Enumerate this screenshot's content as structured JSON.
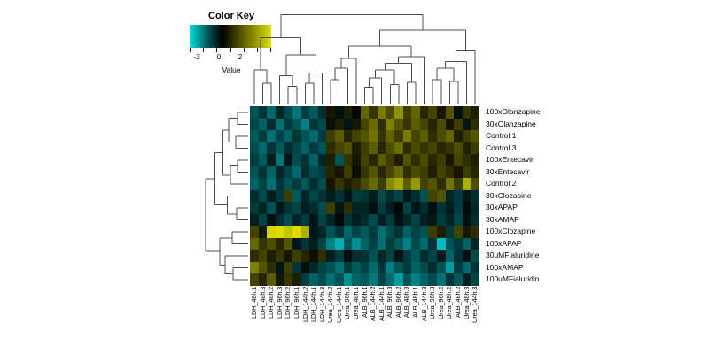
{
  "color_key": {
    "title": "Color Key",
    "value_label": "Value",
    "tick_labels": [
      "-3",
      "0",
      "2"
    ],
    "tick_label_positions": [
      0.09,
      0.36,
      0.62
    ],
    "n_ticks": 7,
    "gradient_left": "#00dede",
    "gradient_mid": "#000000",
    "gradient_right": "#dede00"
  },
  "chart_data": {
    "type": "heatmap",
    "title": "",
    "value_label": "Value",
    "scale": {
      "min": -3,
      "max": 3,
      "negative_color": "#00e6eb",
      "zero_color": "#000000",
      "positive_color": "#e6e600"
    },
    "columns": [
      "LDH_48h.1",
      "LDH_48h.3",
      "LDH_48h.2",
      "LDH_96h.3",
      "LDH_96h.2",
      "LDH_96h.1",
      "LDH_144h.2",
      "LDH_144h.1",
      "LDH_144h.3",
      "Urea_144h.2",
      "Urea_144h.1",
      "Urea_96h.1",
      "Urea_48h.1",
      "ALB_96h.1",
      "ALB_144h.2",
      "ALB_144h.1",
      "ALB_96h.3",
      "ALB_96h.2",
      "ALB_48h.3",
      "ALB_48h.1",
      "ALB_144h.3",
      "Urea_96h.3",
      "Urea_96h.2",
      "Urea_48h.2",
      "ALB_48h.2",
      "Urea_48h.3",
      "Urea_144h.3"
    ],
    "rows": [
      "100xOlanzapine",
      "30xOlanzapine",
      "Control 1",
      "Control 3",
      "100xEntecavir",
      "30xEntecavir",
      "Control 2",
      "30xClozapine",
      "30xAPAP",
      "30xAMAP",
      "100xClozapine",
      "100xAPAP",
      "30uMFialuridine",
      "100xAMAP",
      "100uMFialuridin"
    ],
    "values": [
      [
        -1.1,
        -0.7,
        -1.4,
        -0.5,
        -1.0,
        -1.6,
        -0.8,
        -1.2,
        -0.6,
        0.3,
        -0.2,
        0.4,
        0.1,
        1.3,
        0.7,
        1.6,
        1.0,
        1.9,
        0.8,
        1.3,
        0.5,
        0.9,
        0.3,
        1.1,
        -0.2,
        0.7,
        0.4
      ],
      [
        -0.9,
        -1.3,
        -0.6,
        -1.5,
        -0.8,
        -1.1,
        -1.7,
        -0.7,
        -1.0,
        0.2,
        0.4,
        -0.3,
        0.3,
        0.9,
        1.4,
        0.6,
        1.7,
        1.1,
        0.7,
        1.2,
        0.9,
        0.5,
        1.0,
        0.3,
        0.8,
        -0.3,
        0.6
      ],
      [
        -1.2,
        -0.8,
        -1.5,
        -0.9,
        -1.3,
        -0.7,
        -1.1,
        -1.4,
        -0.8,
        0.8,
        1.2,
        0.5,
        0.9,
        1.1,
        1.5,
        0.7,
        1.3,
        0.8,
        1.6,
        0.9,
        1.2,
        0.6,
        1.0,
        1.3,
        0.4,
        0.8,
        1.1
      ],
      [
        -1.0,
        -1.4,
        -0.7,
        -1.2,
        -0.6,
        -0.9,
        -1.3,
        -0.8,
        -1.1,
        0.6,
        0.9,
        1.1,
        0.4,
        0.8,
        1.2,
        0.5,
        1.0,
        1.4,
        0.6,
        1.0,
        0.7,
        0.9,
        0.5,
        0.7,
        1.0,
        0.4,
        0.8
      ],
      [
        -0.8,
        -1.2,
        -0.4,
        -1.6,
        -0.3,
        -1.0,
        -0.7,
        -1.3,
        -0.5,
        0.4,
        -1.1,
        0.7,
        0.3,
        0.9,
        0.5,
        1.2,
        0.8,
        0.4,
        1.1,
        0.6,
        1.0,
        0.5,
        0.8,
        0.3,
        0.9,
        0.6,
        0.4
      ],
      [
        -1.1,
        -0.7,
        -1.3,
        -0.5,
        -0.9,
        -1.4,
        -0.6,
        -1.0,
        -0.8,
        0.5,
        0.3,
        0.8,
        0.2,
        0.7,
        1.1,
        0.5,
        0.9,
        1.4,
        0.6,
        1.0,
        0.8,
        0.4,
        0.9,
        0.6,
        0.3,
        0.8,
        0.5
      ],
      [
        -1.3,
        -0.9,
        -1.5,
        -0.7,
        -1.1,
        -0.8,
        -1.2,
        -0.6,
        -1.0,
        0.3,
        0.7,
        0.4,
        0.6,
        1.0,
        1.4,
        0.8,
        1.8,
        2.2,
        1.2,
        2.0,
        0.9,
        1.1,
        0.6,
        1.5,
        0.8,
        2.3,
        1.0
      ],
      [
        -0.6,
        -1.0,
        -0.4,
        -0.8,
        0.8,
        -1.2,
        -0.5,
        -0.9,
        -0.7,
        -0.4,
        -0.7,
        -0.3,
        -0.8,
        -0.7,
        -0.4,
        -1.0,
        -0.6,
        -0.9,
        -0.3,
        -0.6,
        -1.1,
        0.9,
        1.1,
        -0.5,
        -0.8,
        -0.3,
        -0.6
      ],
      [
        -0.8,
        -0.5,
        -1.1,
        -0.3,
        -0.7,
        -0.9,
        -0.4,
        -0.6,
        -1.0,
        0.8,
        -0.3,
        0.6,
        -0.5,
        -0.5,
        -0.2,
        -0.8,
        -0.4,
        -0.1,
        -0.9,
        -0.3,
        -0.6,
        -0.2,
        -0.7,
        -0.4,
        -0.8,
        -0.1,
        -0.5
      ],
      [
        -0.4,
        -0.9,
        -0.2,
        -0.6,
        -1.0,
        -0.5,
        -0.8,
        -0.3,
        -0.9,
        -0.5,
        -0.1,
        -0.7,
        -0.4,
        -0.6,
        -1.0,
        -0.4,
        -0.8,
        -0.2,
        -0.5,
        -0.9,
        -0.4,
        -0.3,
        -0.8,
        -0.5,
        -0.9,
        -0.2,
        -0.6
      ],
      [
        0.9,
        0.3,
        2.8,
        2.9,
        2.6,
        2.9,
        2.3,
        -0.3,
        -0.5,
        -1.1,
        -0.7,
        -1.4,
        -0.9,
        -1.2,
        -0.8,
        -1.5,
        -1.0,
        -0.7,
        -1.3,
        -0.9,
        -1.1,
        0.8,
        0.4,
        -0.8,
        0.9,
        0.3,
        0.6
      ],
      [
        1.3,
        0.7,
        1.0,
        0.5,
        1.1,
        -0.3,
        -0.7,
        -0.4,
        -0.9,
        -1.7,
        -2.3,
        -1.1,
        -1.9,
        -1.3,
        -0.9,
        -1.5,
        -0.8,
        -1.2,
        -1.7,
        -1.0,
        -1.4,
        -0.7,
        -2.5,
        -1.1,
        -0.8,
        -1.3,
        -0.5
      ],
      [
        0.6,
        0.9,
        0.4,
        0.7,
        0.3,
        0.8,
        0.5,
        0.2,
        0.6,
        -0.4,
        -0.8,
        -0.2,
        -0.6,
        -0.7,
        -1.1,
        -0.5,
        -0.9,
        -0.3,
        -0.8,
        -1.2,
        -0.6,
        -0.9,
        -0.4,
        -1.3,
        -0.7,
        -0.2,
        -1.0
      ],
      [
        1.7,
        1.1,
        0.6,
        -0.3,
        0.8,
        -0.7,
        -0.2,
        -0.5,
        -0.9,
        -1.1,
        -1.5,
        -0.8,
        -1.2,
        -0.9,
        -1.4,
        -0.7,
        -1.7,
        -1.1,
        -0.8,
        -1.3,
        -1.0,
        -0.6,
        -1.1,
        -2.1,
        -0.8,
        -1.4,
        -0.7
      ],
      [
        0.9,
        0.5,
        1.2,
        0.3,
        0.7,
        0.4,
        -0.8,
        -1.3,
        -1.0,
        -1.5,
        -1.1,
        -1.9,
        -1.3,
        -1.2,
        -1.6,
        -0.9,
        -1.4,
        -2.1,
        -1.1,
        -1.7,
        -1.3,
        -1.0,
        -1.5,
        -0.7,
        -1.2,
        -0.4,
        -0.9
      ]
    ],
    "col_dendrogram": {
      "merges": [
        [
          "L1",
          "L2",
          0.22
        ],
        [
          "L0",
          "M0",
          0.36
        ],
        [
          "L4",
          "L5",
          0.19
        ],
        [
          "L3",
          "M2",
          0.3
        ],
        [
          "L6",
          "L7",
          0.22
        ],
        [
          "M4",
          "L8",
          0.33
        ],
        [
          "M3",
          "M5",
          0.52
        ],
        [
          "M1",
          "M6",
          0.7
        ],
        [
          "L9",
          "L10",
          0.26
        ],
        [
          "M8",
          "L11",
          0.38
        ],
        [
          "M9",
          "L12",
          0.48
        ],
        [
          "L13",
          "L14",
          0.18
        ],
        [
          "M11",
          "L15",
          0.28
        ],
        [
          "L16",
          "L17",
          0.21
        ],
        [
          "M12",
          "M13",
          0.36
        ],
        [
          "L18",
          "L19",
          0.23
        ],
        [
          "M14",
          "M15",
          0.43
        ],
        [
          "M16",
          "L20",
          0.5
        ],
        [
          "L21",
          "L22",
          0.26
        ],
        [
          "L23",
          "L24",
          0.24
        ],
        [
          "M18",
          "M19",
          0.38
        ],
        [
          "M20",
          "L25",
          0.45
        ],
        [
          "M21",
          "L26",
          0.56
        ],
        [
          "M10",
          "M17",
          0.61
        ],
        [
          "M23",
          "M22",
          0.78
        ],
        [
          "M7",
          "M24",
          0.94
        ]
      ]
    },
    "row_dendrogram": {
      "merges": [
        [
          "L0",
          "L1",
          0.23
        ],
        [
          "L2",
          "L3",
          0.27
        ],
        [
          "M0",
          "M1",
          0.42
        ],
        [
          "L4",
          "L5",
          0.23
        ],
        [
          "M3",
          "L6",
          0.38
        ],
        [
          "M2",
          "M4",
          0.55
        ],
        [
          "L8",
          "L9",
          0.25
        ],
        [
          "L7",
          "M6",
          0.45
        ],
        [
          "M5",
          "M7",
          0.72
        ],
        [
          "L10",
          "L11",
          0.35
        ],
        [
          "L13",
          "L14",
          0.33
        ],
        [
          "L12",
          "M10",
          0.5
        ],
        [
          "M9",
          "M11",
          0.62
        ],
        [
          "M8",
          "M12",
          0.92
        ]
      ]
    }
  }
}
